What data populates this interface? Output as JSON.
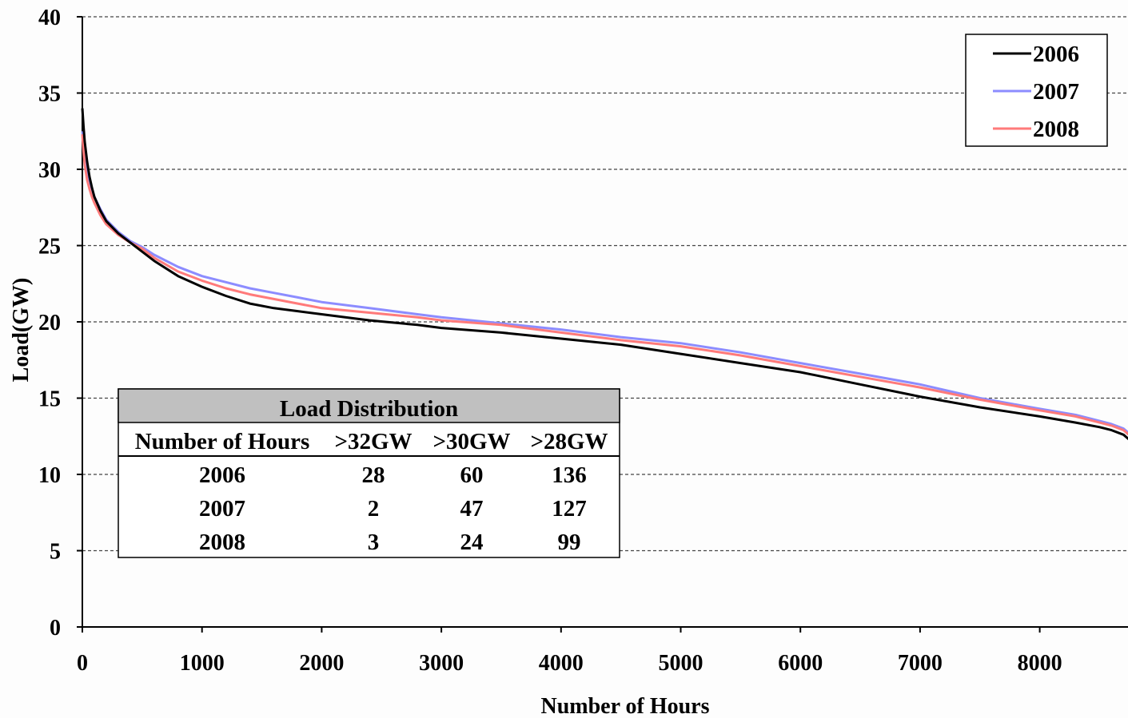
{
  "chart_data": {
    "type": "line",
    "title": "",
    "xlabel": "Number of Hours",
    "ylabel": "Load(GW)",
    "xlim": [
      0,
      8760
    ],
    "ylim": [
      0,
      40
    ],
    "x_ticks": [
      0,
      1000,
      2000,
      3000,
      4000,
      5000,
      6000,
      7000,
      8000
    ],
    "y_ticks": [
      0,
      5,
      10,
      15,
      20,
      25,
      30,
      35,
      40
    ],
    "grid": "horizontal dashed",
    "legend_position": "top-right",
    "series": [
      {
        "name": "2006",
        "color": "#000000",
        "x": [
          0,
          10,
          20,
          40,
          60,
          80,
          100,
          150,
          200,
          300,
          400,
          500,
          600,
          800,
          1000,
          1200,
          1400,
          1600,
          1800,
          2000,
          2400,
          2800,
          3000,
          3500,
          4000,
          4500,
          5000,
          5500,
          6000,
          6500,
          7000,
          7500,
          8000,
          8300,
          8500,
          8600,
          8700,
          8760
        ],
        "values": [
          34.0,
          32.8,
          31.8,
          30.5,
          29.5,
          28.8,
          28.2,
          27.3,
          26.6,
          25.8,
          25.2,
          24.6,
          24.0,
          23.0,
          22.3,
          21.7,
          21.2,
          20.9,
          20.7,
          20.5,
          20.1,
          19.8,
          19.6,
          19.3,
          18.9,
          18.5,
          17.9,
          17.3,
          16.7,
          15.9,
          15.1,
          14.4,
          13.8,
          13.4,
          13.1,
          12.9,
          12.6,
          12.2
        ]
      },
      {
        "name": "2007",
        "color": "#8c8cff",
        "x": [
          0,
          10,
          20,
          40,
          60,
          80,
          100,
          150,
          200,
          300,
          400,
          500,
          600,
          800,
          1000,
          1200,
          1400,
          1600,
          1800,
          2000,
          2400,
          2800,
          3000,
          3500,
          4000,
          4500,
          5000,
          5500,
          6000,
          6500,
          7000,
          7500,
          8000,
          8300,
          8500,
          8600,
          8700,
          8760
        ],
        "values": [
          32.5,
          31.8,
          31.0,
          30.0,
          29.3,
          28.7,
          28.2,
          27.4,
          26.7,
          25.9,
          25.3,
          24.9,
          24.4,
          23.6,
          23.0,
          22.6,
          22.2,
          21.9,
          21.6,
          21.3,
          20.9,
          20.5,
          20.3,
          19.9,
          19.5,
          19.0,
          18.6,
          18.0,
          17.3,
          16.6,
          15.9,
          15.0,
          14.3,
          13.9,
          13.5,
          13.3,
          13.0,
          12.6
        ]
      },
      {
        "name": "2008",
        "color": "#ff7a7a",
        "x": [
          0,
          10,
          20,
          40,
          60,
          80,
          100,
          150,
          200,
          300,
          400,
          500,
          600,
          800,
          1000,
          1200,
          1400,
          1600,
          1800,
          2000,
          2400,
          2800,
          3000,
          3500,
          4000,
          4500,
          5000,
          5500,
          6000,
          6500,
          7000,
          7500,
          8000,
          8300,
          8500,
          8600,
          8700,
          8760
        ],
        "values": [
          32.3,
          31.2,
          30.3,
          29.3,
          28.7,
          28.2,
          27.8,
          27.0,
          26.4,
          25.7,
          25.2,
          24.8,
          24.2,
          23.3,
          22.7,
          22.2,
          21.8,
          21.5,
          21.2,
          20.9,
          20.6,
          20.3,
          20.1,
          19.8,
          19.3,
          18.8,
          18.4,
          17.8,
          17.1,
          16.4,
          15.7,
          14.9,
          14.2,
          13.8,
          13.4,
          13.2,
          12.9,
          12.5
        ]
      }
    ],
    "inset_table": {
      "title": "Load Distribution",
      "headers": [
        "Number of Hours",
        ">32GW",
        ">30GW",
        ">28GW"
      ],
      "rows": [
        [
          "2006",
          "28",
          "60",
          "136"
        ],
        [
          "2007",
          "2",
          "47",
          "127"
        ],
        [
          "2008",
          "3",
          "24",
          "99"
        ]
      ]
    }
  }
}
